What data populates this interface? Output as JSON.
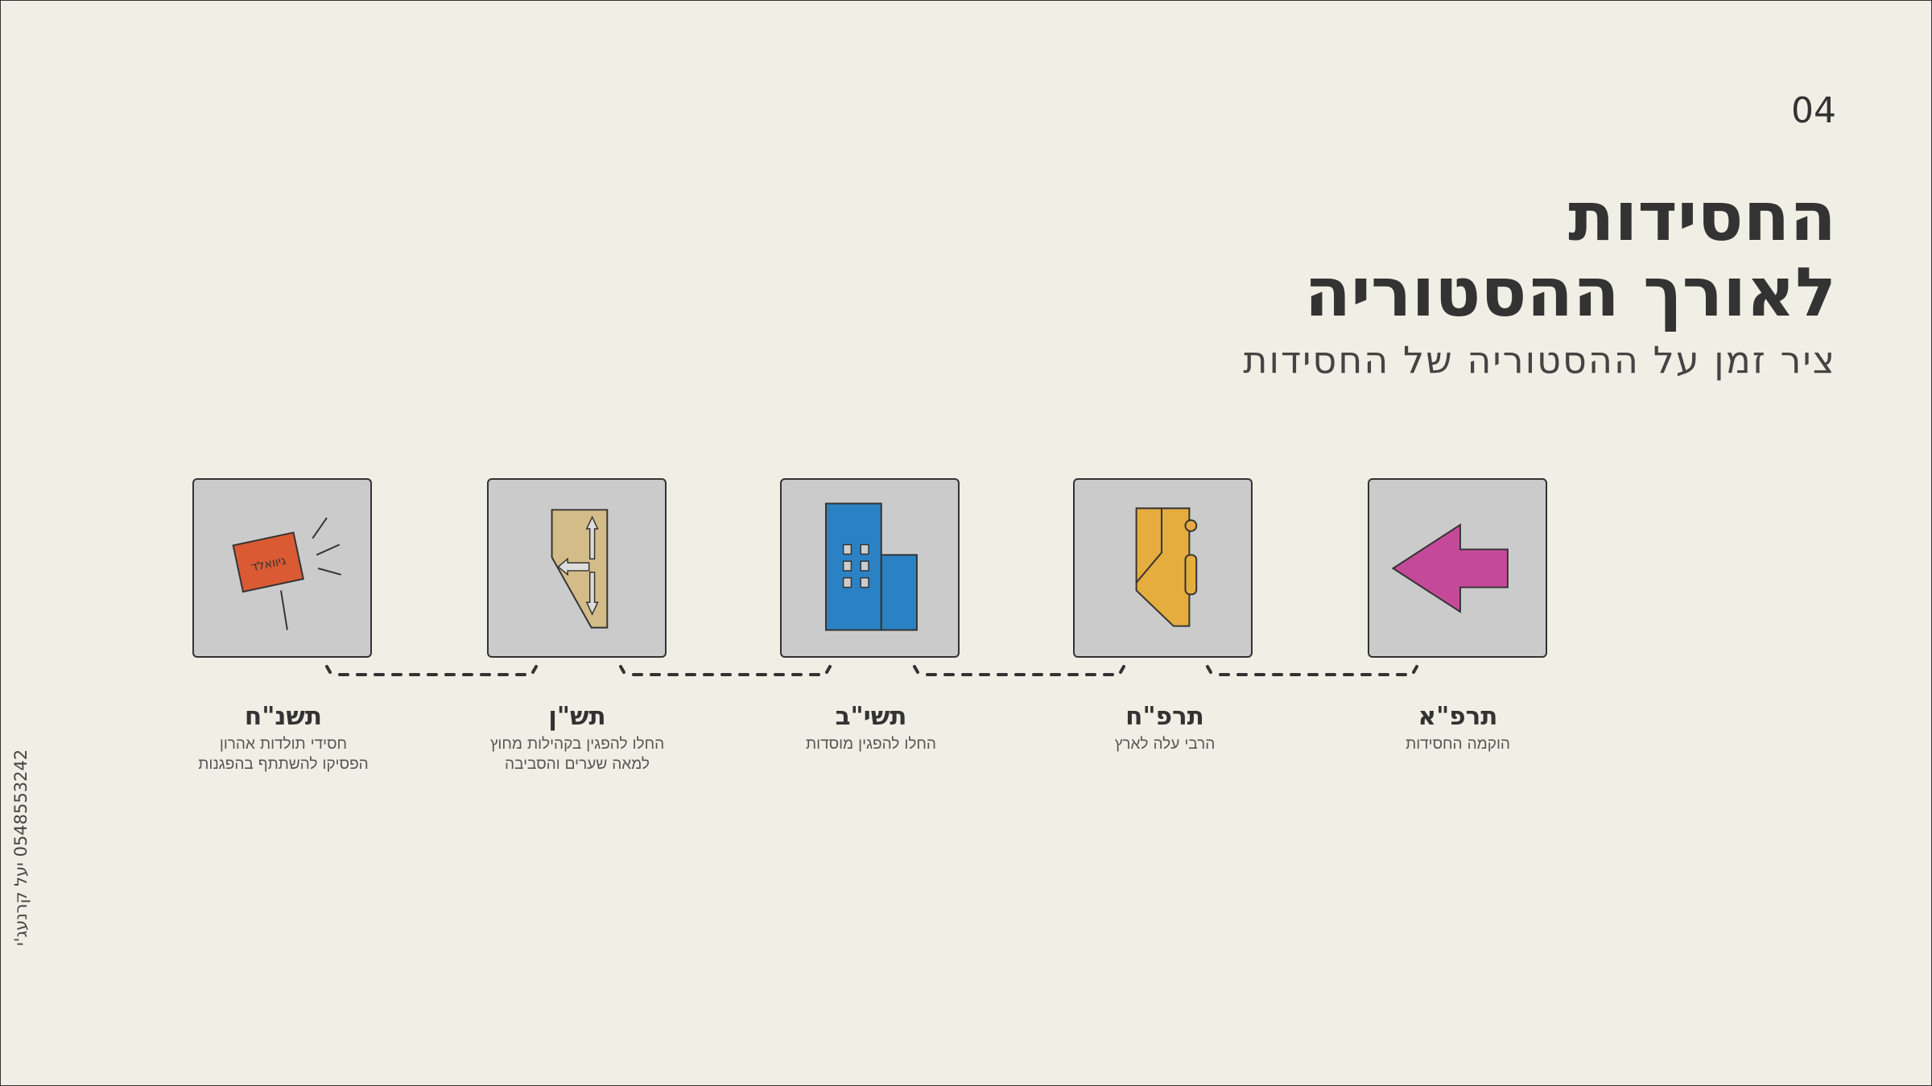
{
  "slide_number": "04",
  "title_line1": "החסידות",
  "title_line2": "לאורך ההסטוריה",
  "subtitle": "ציר זמן על ההסטוריה של החסידות",
  "author": {
    "name": "יעל קרנעג'י",
    "phone": "0548553242"
  },
  "colors": {
    "background": "#f0efe5",
    "box": "#cbcbcb",
    "sign": "#d95a33",
    "map": "#d4bc88",
    "building": "#2a82c4",
    "door": "#e5ac3e",
    "arrow": "#c44a99"
  },
  "timeline": [
    {
      "year": "תרפ\"א",
      "desc1": "הוקמה החסידות",
      "desc2": "",
      "icon": "arrow-left-icon"
    },
    {
      "year": "תרפ\"ח",
      "desc1": "הרבי עלה לארץ",
      "desc2": "",
      "icon": "door-icon"
    },
    {
      "year": "תשי\"ב",
      "desc1": "החלו להפגין מוסדות",
      "desc2": "",
      "icon": "building-icon"
    },
    {
      "year": "תש\"ן",
      "desc1": "החלו להפגין בקהילות מחוץ",
      "desc2": "למאה שערים והסביבה",
      "icon": "map-directions-icon"
    },
    {
      "year": "תשנ\"ח",
      "desc1": "חסידי תולדות אהרון",
      "desc2": "הפסיקו להשתתף בהפגנות",
      "icon": "protest-sign-icon"
    }
  ],
  "sign_text": "גיוואלד"
}
